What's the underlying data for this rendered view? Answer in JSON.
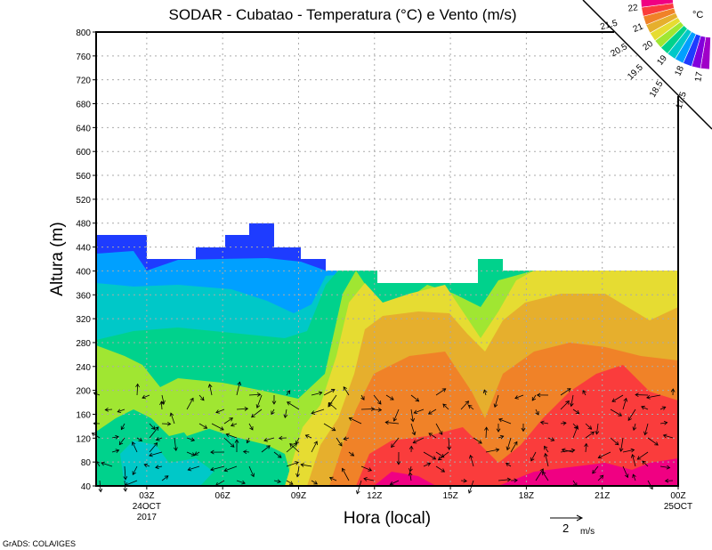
{
  "chart_data": {
    "type": "heatmap",
    "title": "SODAR - Cubatao - Temperatura (°C) e Vento (m/s)",
    "xlabel": "Hora (local)",
    "ylabel": "Altura (m)",
    "ylim": [
      40,
      800
    ],
    "yticks": [
      40,
      80,
      120,
      160,
      200,
      240,
      280,
      320,
      360,
      400,
      440,
      480,
      520,
      560,
      600,
      640,
      680,
      720,
      760,
      800
    ],
    "xlim_hours": [
      1,
      24
    ],
    "xticks": [
      {
        "hour": 3,
        "label": "03Z",
        "sub1": "24OCT",
        "sub2": "2017"
      },
      {
        "hour": 6,
        "label": "06Z"
      },
      {
        "hour": 9,
        "label": "09Z"
      },
      {
        "hour": 12,
        "label": "12Z"
      },
      {
        "hour": 15,
        "label": "15Z"
      },
      {
        "hour": 18,
        "label": "18Z"
      },
      {
        "hour": 21,
        "label": "21Z"
      },
      {
        "hour": 24,
        "label": "00Z",
        "sub1": "25OCT"
      }
    ],
    "grid": true,
    "colorbar": {
      "unit": "°C",
      "levels": [
        "17",
        "17.5",
        "18",
        "18.5",
        "19",
        "19.5",
        "20",
        "20.5",
        "21",
        "21.5",
        "22"
      ],
      "colors": [
        "#a000c8",
        "#8200dc",
        "#1e3cff",
        "#00a0ff",
        "#00c8c8",
        "#00d28c",
        "#a0e632",
        "#e6dc32",
        "#e6af2d",
        "#f08228",
        "#fa3c3c",
        "#f00082"
      ],
      "placement": "top-right"
    },
    "vector_scale": {
      "value": "2",
      "unit": "m/s"
    },
    "footer": "GrADS: COLA/IGES"
  }
}
